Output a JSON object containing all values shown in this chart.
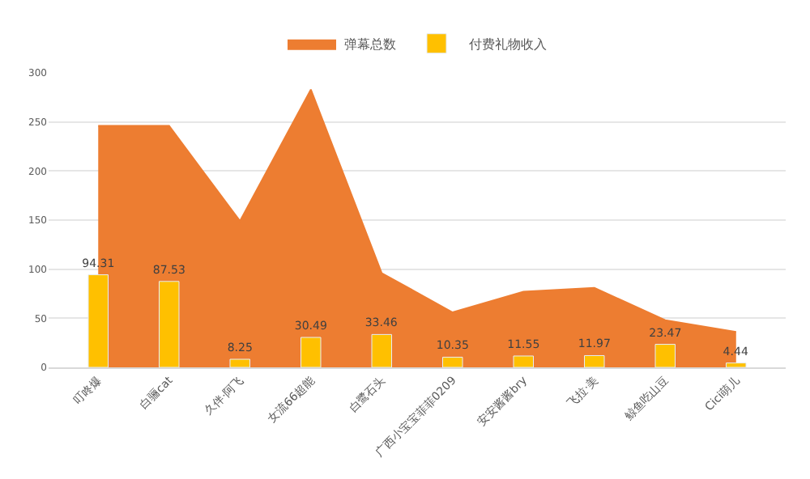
{
  "chart_data": {
    "type": "bar",
    "categories": [
      "叮咚爆",
      "白骊cat",
      "久伴·阿飞",
      "女流66超能",
      "白鹭石头",
      "广西小宝宝菲菲0209",
      "安安酱酱bry",
      "飞拉·美",
      "鲸鱼吃山豆",
      "Cici萌儿"
    ],
    "series": [
      {
        "name": "弹幕总数",
        "type": "area",
        "color": "#ed7d31",
        "values": [
          246,
          246,
          149,
          283,
          96,
          56,
          77,
          81,
          48,
          36
        ]
      },
      {
        "name": "付费礼物收入",
        "color": "#ffc000",
        "values": [
          94.31,
          87.53,
          8.25,
          30.49,
          33.46,
          10.35,
          11.55,
          11.97,
          23.47,
          4.44
        ],
        "data_labels": true
      }
    ],
    "ylim": [
      0,
      300
    ],
    "yticks": [
      0,
      50,
      100,
      150,
      200,
      250,
      300
    ],
    "grid": "y",
    "legend": "top"
  }
}
